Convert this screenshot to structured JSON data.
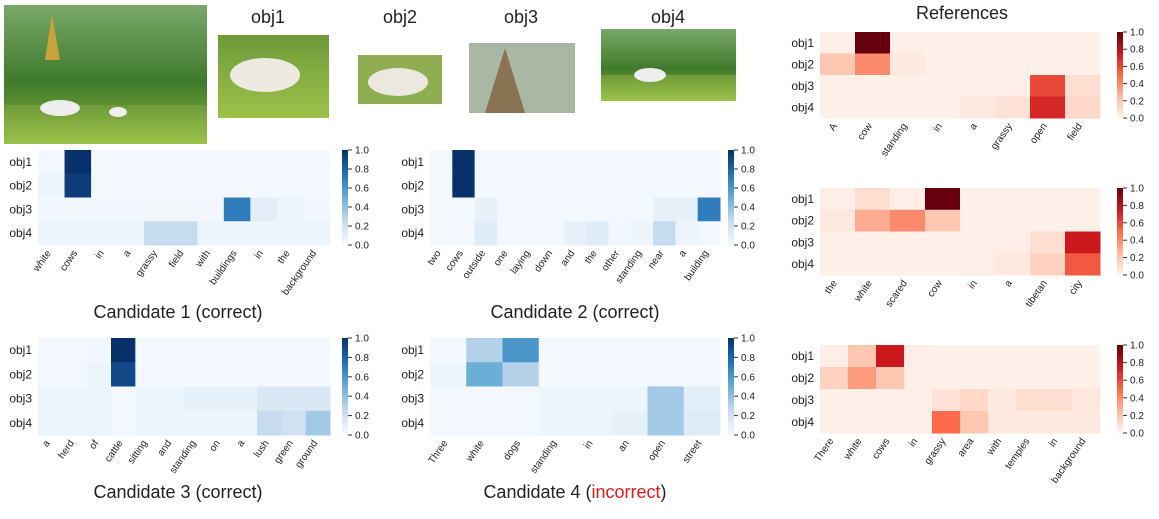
{
  "images": {
    "labels": [
      "obj1",
      "obj2",
      "obj3",
      "obj4"
    ]
  },
  "references_title": "References",
  "chart_data": [
    {
      "type": "heatmap",
      "title": "Candidate 1 (correct)",
      "rows": [
        "obj1",
        "obj2",
        "obj3",
        "obj4"
      ],
      "categories": [
        "white",
        "cows",
        "in",
        "a",
        "grassy",
        "field",
        "with",
        "buildings",
        "in",
        "the",
        "background"
      ],
      "values": [
        [
          0.02,
          1.0,
          0.02,
          0.02,
          0.02,
          0.02,
          0.02,
          0.02,
          0.02,
          0.02,
          0.02
        ],
        [
          0.05,
          0.95,
          0.02,
          0.02,
          0.02,
          0.02,
          0.02,
          0.02,
          0.02,
          0.02,
          0.02
        ],
        [
          0.03,
          0.03,
          0.03,
          0.03,
          0.03,
          0.03,
          0.03,
          0.7,
          0.1,
          0.05,
          0.03
        ],
        [
          0.05,
          0.05,
          0.05,
          0.05,
          0.25,
          0.25,
          0.05,
          0.05,
          0.05,
          0.05,
          0.05
        ]
      ],
      "colormap": [
        "#f7fbff",
        "#c6dbef",
        "#6baed6",
        "#2171b5",
        "#08306b"
      ],
      "clim": [
        0,
        1
      ],
      "cticks": [
        {
          "value": 0,
          "label": "0.0"
        },
        0.2,
        0.4,
        0.6,
        0.8,
        {
          "value": 1,
          "label": "1.0"
        }
      ]
    },
    {
      "type": "heatmap",
      "title": "Candidate 2 (correct)",
      "rows": [
        "obj1",
        "obj2",
        "obj3",
        "obj4"
      ],
      "categories": [
        "two",
        "cows",
        "outside",
        "one",
        "laying",
        "down",
        "and",
        "the",
        "other",
        "standing",
        "near",
        "a",
        "building"
      ],
      "values": [
        [
          0.02,
          1.0,
          0.02,
          0.02,
          0.02,
          0.02,
          0.02,
          0.02,
          0.02,
          0.02,
          0.02,
          0.02,
          0.02
        ],
        [
          0.02,
          1.0,
          0.02,
          0.02,
          0.02,
          0.02,
          0.02,
          0.02,
          0.02,
          0.02,
          0.02,
          0.02,
          0.02
        ],
        [
          0.02,
          0.02,
          0.08,
          0.02,
          0.02,
          0.02,
          0.02,
          0.02,
          0.02,
          0.02,
          0.08,
          0.08,
          0.7
        ],
        [
          0.02,
          0.02,
          0.12,
          0.02,
          0.02,
          0.02,
          0.08,
          0.12,
          0.03,
          0.05,
          0.25,
          0.05,
          0.02
        ]
      ],
      "colormap": [
        "#f7fbff",
        "#c6dbef",
        "#6baed6",
        "#2171b5",
        "#08306b"
      ],
      "clim": [
        0,
        1
      ],
      "cticks": [
        {
          "value": 0,
          "label": "0.0"
        },
        0.2,
        0.4,
        0.6,
        0.8,
        {
          "value": 1,
          "label": "1.0"
        }
      ]
    },
    {
      "type": "heatmap",
      "title": "Candidate 3 (correct)",
      "rows": [
        "obj1",
        "obj2",
        "obj3",
        "obj4"
      ],
      "categories": [
        "a",
        "herd",
        "of",
        "cattle",
        "sitting",
        "and",
        "standing",
        "on",
        "a",
        "lush",
        "green",
        "ground"
      ],
      "values": [
        [
          0.02,
          0.02,
          0.03,
          1.0,
          0.02,
          0.02,
          0.02,
          0.02,
          0.02,
          0.02,
          0.02,
          0.02
        ],
        [
          0.02,
          0.02,
          0.05,
          0.9,
          0.02,
          0.02,
          0.02,
          0.02,
          0.02,
          0.02,
          0.02,
          0.02
        ],
        [
          0.05,
          0.05,
          0.05,
          0.02,
          0.05,
          0.05,
          0.08,
          0.08,
          0.08,
          0.15,
          0.15,
          0.15
        ],
        [
          0.05,
          0.05,
          0.05,
          0.02,
          0.05,
          0.05,
          0.05,
          0.05,
          0.05,
          0.25,
          0.2,
          0.35
        ]
      ],
      "colormap": [
        "#f7fbff",
        "#c6dbef",
        "#6baed6",
        "#2171b5",
        "#08306b"
      ],
      "clim": [
        0,
        1
      ],
      "cticks": [
        {
          "value": 0,
          "label": "0.0"
        },
        0.2,
        0.4,
        0.6,
        0.8,
        {
          "value": 1,
          "label": "1.0"
        }
      ]
    },
    {
      "type": "heatmap",
      "title": [
        "Candidate 4 (",
        "incorrect",
        ")"
      ],
      "title_highlight_color": "#e8191c",
      "rows": [
        "obj1",
        "obj2",
        "obj3",
        "obj4"
      ],
      "categories": [
        "Three",
        "white",
        "dogs",
        "standing",
        "in",
        "an",
        "open",
        "street"
      ],
      "values": [
        [
          0.02,
          0.3,
          0.6,
          0.02,
          0.02,
          0.02,
          0.02,
          0.02
        ],
        [
          0.05,
          0.5,
          0.3,
          0.02,
          0.02,
          0.02,
          0.02,
          0.02
        ],
        [
          0.02,
          0.02,
          0.02,
          0.05,
          0.05,
          0.05,
          0.35,
          0.1
        ],
        [
          0.02,
          0.02,
          0.02,
          0.05,
          0.05,
          0.08,
          0.35,
          0.12
        ]
      ],
      "colormap": [
        "#f7fbff",
        "#c6dbef",
        "#6baed6",
        "#2171b5",
        "#08306b"
      ],
      "clim": [
        0,
        1
      ],
      "cticks": [
        {
          "value": 0,
          "label": "0.0"
        },
        0.2,
        0.4,
        0.6,
        0.8,
        {
          "value": 1,
          "label": "1.0"
        }
      ]
    },
    {
      "type": "heatmap",
      "rows": [
        "obj1",
        "obj2",
        "obj3",
        "obj4"
      ],
      "categories": [
        "A",
        "cow",
        "standing",
        "in",
        "a",
        "grassy",
        "open",
        "field"
      ],
      "values": [
        [
          0.03,
          1.0,
          0.03,
          0.02,
          0.02,
          0.02,
          0.02,
          0.02
        ],
        [
          0.2,
          0.4,
          0.05,
          0.02,
          0.02,
          0.02,
          0.02,
          0.02
        ],
        [
          0.02,
          0.02,
          0.02,
          0.02,
          0.03,
          0.03,
          0.6,
          0.1
        ],
        [
          0.02,
          0.02,
          0.02,
          0.02,
          0.05,
          0.08,
          0.7,
          0.12
        ]
      ],
      "colormap": [
        "#fff5f0",
        "#fcbba1",
        "#fb6a4a",
        "#cb181d",
        "#67000d"
      ],
      "clim": [
        0,
        1
      ],
      "cticks": [
        {
          "value": 0,
          "label": "0.0"
        },
        0.2,
        0.4,
        0.6,
        0.8,
        {
          "value": 1,
          "label": "1.0"
        }
      ]
    },
    {
      "type": "heatmap",
      "rows": [
        "obj1",
        "obj2",
        "obj3",
        "obj4"
      ],
      "categories": [
        "the",
        "white",
        "scared",
        "cow",
        "in",
        "a",
        "tibetan",
        "city"
      ],
      "values": [
        [
          0.03,
          0.1,
          0.03,
          1.0,
          0.02,
          0.02,
          0.02,
          0.02
        ],
        [
          0.05,
          0.3,
          0.4,
          0.2,
          0.02,
          0.02,
          0.02,
          0.02
        ],
        [
          0.02,
          0.02,
          0.02,
          0.02,
          0.03,
          0.03,
          0.1,
          0.75
        ],
        [
          0.02,
          0.02,
          0.02,
          0.02,
          0.03,
          0.05,
          0.15,
          0.55
        ]
      ],
      "colormap": [
        "#fff5f0",
        "#fcbba1",
        "#fb6a4a",
        "#cb181d",
        "#67000d"
      ],
      "clim": [
        0,
        1
      ],
      "cticks": [
        {
          "value": 0,
          "label": "0.0"
        },
        0.2,
        0.4,
        0.6,
        0.8,
        {
          "value": 1,
          "label": "1.0"
        }
      ]
    },
    {
      "type": "heatmap",
      "rows": [
        "obj1",
        "obj2",
        "obj3",
        "obj4"
      ],
      "categories": [
        "There",
        "white",
        "cows",
        "in",
        "grassy",
        "area",
        "with",
        "temples",
        "in",
        "background"
      ],
      "values": [
        [
          0.03,
          0.2,
          0.75,
          0.03,
          0.02,
          0.02,
          0.02,
          0.02,
          0.02,
          0.02
        ],
        [
          0.15,
          0.35,
          0.2,
          0.03,
          0.02,
          0.02,
          0.02,
          0.02,
          0.02,
          0.02
        ],
        [
          0.02,
          0.02,
          0.02,
          0.03,
          0.08,
          0.12,
          0.05,
          0.1,
          0.1,
          0.06
        ],
        [
          0.02,
          0.02,
          0.02,
          0.03,
          0.5,
          0.2,
          0.05,
          0.05,
          0.05,
          0.05
        ]
      ],
      "colormap": [
        "#fff5f0",
        "#fcbba1",
        "#fb6a4a",
        "#cb181d",
        "#67000d"
      ],
      "clim": [
        0,
        1
      ],
      "cticks": [
        {
          "value": 0,
          "label": "0.0"
        },
        0.2,
        0.4,
        0.6,
        0.8,
        {
          "value": 1,
          "label": "1.0"
        }
      ]
    }
  ]
}
